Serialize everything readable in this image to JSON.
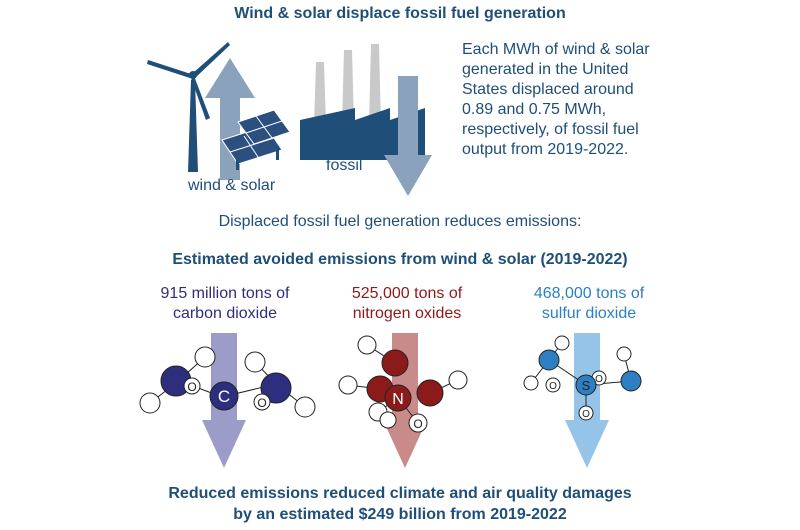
{
  "header": {
    "title": "Wind & solar displace fossil fuel generation",
    "description_lines": [
      "Each MWh of wind & solar",
      "generated in the United",
      "States displaced around",
      "0.89 and 0.75 MWh,",
      "respectively, of fossil fuel",
      "output from 2019-2022."
    ]
  },
  "labels": {
    "renewables": "wind & solar",
    "fossil": "fossil"
  },
  "middle": {
    "statement": "Displaced fossil fuel generation reduces emissions:",
    "section_title": "Estimated avoided emissions from wind & solar (2019-2022)"
  },
  "emissions": [
    {
      "line1": "915 million tons of",
      "line2": "carbon dioxide",
      "color": "#2e2e7e",
      "arrow_color": "#9c9cc8",
      "atom": "C",
      "sub": "O"
    },
    {
      "line1": "525,000 tons of",
      "line2": "nitrogen oxides",
      "color": "#8b1a1a",
      "arrow_color": "#c98a8a",
      "atom": "N",
      "sub": "O"
    },
    {
      "line1": "468,000 tons of",
      "line2": "sulfur dioxide",
      "color": "#2d7fc1",
      "arrow_color": "#96c3e8",
      "atom": "S",
      "sub": "O"
    }
  ],
  "footer": {
    "line1": "Reduced emissions reduced climate and air quality damages",
    "line2": "by an estimated $249 billion from 2019-2022"
  },
  "colors": {
    "navy": "#1f4e79",
    "arrow_gray": "#8aa2bc",
    "panel": "#2b4f7e",
    "factory": "#1f4e79"
  }
}
